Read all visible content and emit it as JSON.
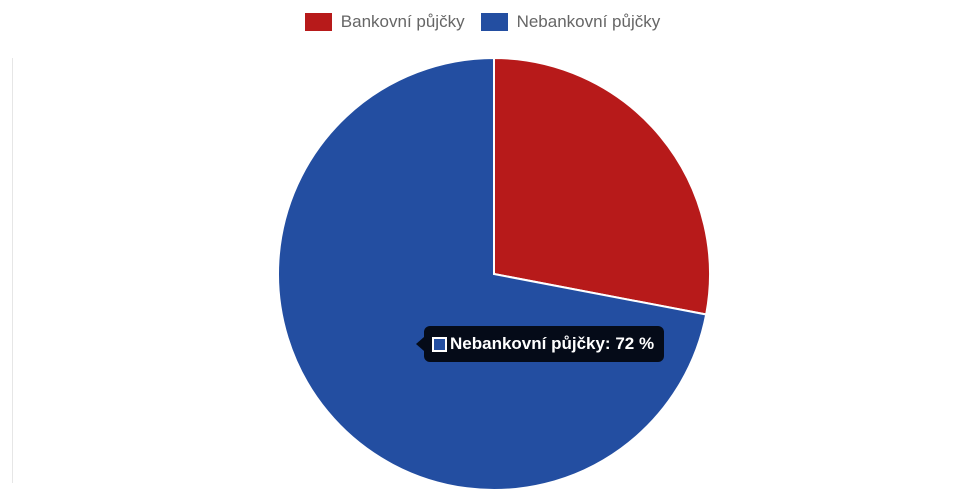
{
  "chart_data": {
    "type": "pie",
    "categories": [
      "Bankovní půjčky",
      "Nebankovní půjčky"
    ],
    "values": [
      28,
      72
    ],
    "colors": [
      "#b71a1a",
      "#234ea1"
    ],
    "unit": "%",
    "legend_position": "top",
    "start_angle_deg": -90,
    "direction": "clockwise"
  },
  "legend": {
    "items": [
      {
        "label": "Bankovní půjčky",
        "color": "#b71a1a"
      },
      {
        "label": "Nebankovní půjčky",
        "color": "#234ea1"
      }
    ]
  },
  "tooltip": {
    "text": "Nebankovní půjčky: 72 %",
    "color": "#234ea1"
  }
}
